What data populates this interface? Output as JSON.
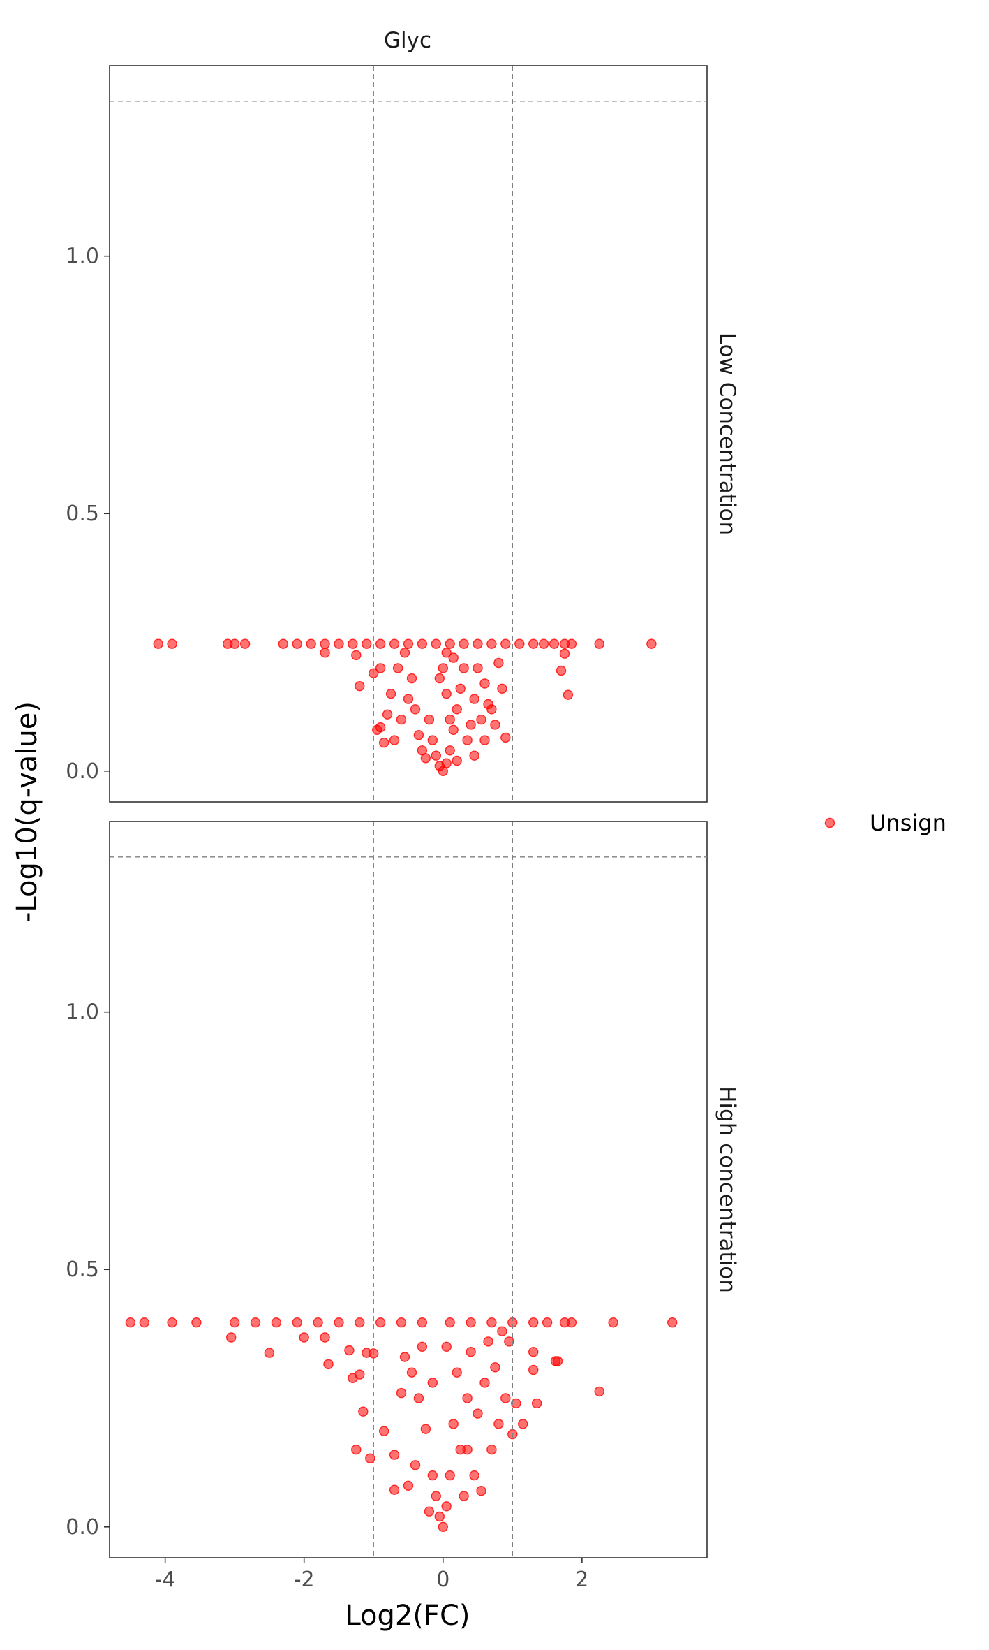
{
  "chart_data": {
    "type": "scatter",
    "facet_column": "Glyc",
    "facets": [
      {
        "label": "Low Concentration",
        "ylim": [
          -0.06,
          1.37
        ],
        "yticks": [
          0.0,
          0.5,
          1.0
        ],
        "ytick_labels": [
          "0.0",
          "0.5",
          "1.0"
        ]
      },
      {
        "label": "High concentration",
        "ylim": [
          -0.06,
          1.37
        ],
        "yticks": [
          0.0,
          0.5,
          1.0
        ],
        "ytick_labels": [
          "0.0",
          "0.5",
          "1.0"
        ]
      }
    ],
    "xlim": [
      -4.8,
      3.8
    ],
    "xticks": [
      -4,
      -2,
      0,
      2
    ],
    "xtick_labels": [
      "-4",
      "-2",
      "0",
      "2"
    ],
    "xlabel": "Log2(FC)",
    "ylabel": "-Log10(q-value)",
    "vlines": [
      -1,
      1
    ],
    "hline": 1.301,
    "legend": {
      "position": "right",
      "entries": [
        {
          "label": "Unsign",
          "color": "#ff0000"
        }
      ]
    },
    "grid": false,
    "series": [
      {
        "facet": "Low Concentration",
        "points": [
          [
            -4.1,
            0.247
          ],
          [
            -3.9,
            0.247
          ],
          [
            -3.1,
            0.247
          ],
          [
            -3.0,
            0.247
          ],
          [
            -2.85,
            0.247
          ],
          [
            -2.3,
            0.247
          ],
          [
            -2.1,
            0.247
          ],
          [
            -1.9,
            0.247
          ],
          [
            -1.7,
            0.247
          ],
          [
            -1.5,
            0.247
          ],
          [
            -1.3,
            0.247
          ],
          [
            -1.1,
            0.247
          ],
          [
            -0.9,
            0.247
          ],
          [
            -0.7,
            0.247
          ],
          [
            -0.5,
            0.247
          ],
          [
            -0.3,
            0.247
          ],
          [
            -0.1,
            0.247
          ],
          [
            0.1,
            0.247
          ],
          [
            0.3,
            0.247
          ],
          [
            0.5,
            0.247
          ],
          [
            0.7,
            0.247
          ],
          [
            0.9,
            0.247
          ],
          [
            1.1,
            0.247
          ],
          [
            1.3,
            0.247
          ],
          [
            1.45,
            0.247
          ],
          [
            1.6,
            0.247
          ],
          [
            1.75,
            0.247
          ],
          [
            1.85,
            0.247
          ],
          [
            2.25,
            0.247
          ],
          [
            3.0,
            0.247
          ],
          [
            -1.7,
            0.23
          ],
          [
            -1.25,
            0.225
          ],
          [
            -0.9,
            0.2
          ],
          [
            -1.2,
            0.165
          ],
          [
            -1.0,
            0.19
          ],
          [
            -0.75,
            0.15
          ],
          [
            -0.8,
            0.11
          ],
          [
            -0.9,
            0.085
          ],
          [
            -0.95,
            0.08
          ],
          [
            -0.85,
            0.055
          ],
          [
            -0.7,
            0.06
          ],
          [
            -0.6,
            0.1
          ],
          [
            -0.5,
            0.14
          ],
          [
            -0.45,
            0.18
          ],
          [
            -0.4,
            0.12
          ],
          [
            -0.35,
            0.07
          ],
          [
            -0.3,
            0.04
          ],
          [
            -0.25,
            0.025
          ],
          [
            -0.2,
            0.1
          ],
          [
            -0.15,
            0.06
          ],
          [
            -0.1,
            0.03
          ],
          [
            -0.05,
            0.01
          ],
          [
            0.0,
            0.0
          ],
          [
            0.05,
            0.015
          ],
          [
            0.1,
            0.04
          ],
          [
            0.15,
            0.08
          ],
          [
            0.2,
            0.12
          ],
          [
            0.25,
            0.16
          ],
          [
            0.3,
            0.2
          ],
          [
            0.35,
            0.06
          ],
          [
            0.4,
            0.09
          ],
          [
            0.45,
            0.14
          ],
          [
            0.5,
            0.2
          ],
          [
            0.55,
            0.1
          ],
          [
            0.6,
            0.17
          ],
          [
            0.65,
            0.13
          ],
          [
            0.7,
            0.12
          ],
          [
            0.75,
            0.09
          ],
          [
            0.8,
            0.21
          ],
          [
            0.85,
            0.16
          ],
          [
            0.9,
            0.065
          ],
          [
            0.6,
            0.06
          ],
          [
            0.45,
            0.03
          ],
          [
            0.2,
            0.02
          ],
          [
            0.1,
            0.1
          ],
          [
            0.05,
            0.15
          ],
          [
            0.0,
            0.2
          ],
          [
            0.05,
            0.23
          ],
          [
            0.15,
            0.22
          ],
          [
            -0.05,
            0.18
          ],
          [
            1.7,
            0.195
          ],
          [
            1.8,
            0.148
          ],
          [
            1.75,
            0.228
          ],
          [
            -0.55,
            0.23
          ],
          [
            -0.65,
            0.2
          ]
        ]
      },
      {
        "facet": "High concentration",
        "points": [
          [
            -4.5,
            0.397
          ],
          [
            -4.3,
            0.397
          ],
          [
            -3.9,
            0.397
          ],
          [
            -3.55,
            0.397
          ],
          [
            -3.0,
            0.397
          ],
          [
            -2.7,
            0.397
          ],
          [
            -2.4,
            0.397
          ],
          [
            -2.1,
            0.397
          ],
          [
            -1.8,
            0.397
          ],
          [
            -1.5,
            0.397
          ],
          [
            -1.2,
            0.397
          ],
          [
            -0.9,
            0.397
          ],
          [
            -0.6,
            0.397
          ],
          [
            -0.3,
            0.397
          ],
          [
            0.1,
            0.397
          ],
          [
            0.4,
            0.397
          ],
          [
            0.7,
            0.397
          ],
          [
            1.0,
            0.397
          ],
          [
            1.3,
            0.397
          ],
          [
            1.5,
            0.397
          ],
          [
            1.75,
            0.397
          ],
          [
            1.85,
            0.397
          ],
          [
            2.45,
            0.397
          ],
          [
            3.3,
            0.397
          ],
          [
            -3.05,
            0.368
          ],
          [
            -2.5,
            0.338
          ],
          [
            -2.0,
            0.368
          ],
          [
            -1.7,
            0.368
          ],
          [
            -1.65,
            0.316
          ],
          [
            -1.35,
            0.343
          ],
          [
            -1.3,
            0.289
          ],
          [
            -1.2,
            0.296
          ],
          [
            -1.1,
            0.338
          ],
          [
            -1.0,
            0.337
          ],
          [
            -1.15,
            0.224
          ],
          [
            -1.25,
            0.15
          ],
          [
            -1.05,
            0.133
          ],
          [
            -0.85,
            0.186
          ],
          [
            -0.7,
            0.14
          ],
          [
            -0.7,
            0.072
          ],
          [
            -0.5,
            0.08
          ],
          [
            -0.4,
            0.12
          ],
          [
            -0.35,
            0.25
          ],
          [
            -0.3,
            0.35
          ],
          [
            -0.25,
            0.19
          ],
          [
            -0.2,
            0.03
          ],
          [
            -0.15,
            0.1
          ],
          [
            -0.1,
            0.06
          ],
          [
            -0.05,
            0.02
          ],
          [
            0.0,
            0.0
          ],
          [
            0.05,
            0.04
          ],
          [
            0.1,
            0.1
          ],
          [
            0.15,
            0.2
          ],
          [
            0.2,
            0.3
          ],
          [
            0.25,
            0.15
          ],
          [
            0.3,
            0.06
          ],
          [
            0.35,
            0.25
          ],
          [
            0.4,
            0.34
          ],
          [
            0.45,
            0.1
          ],
          [
            0.5,
            0.22
          ],
          [
            0.55,
            0.07
          ],
          [
            0.6,
            0.28
          ],
          [
            0.65,
            0.36
          ],
          [
            0.7,
            0.15
          ],
          [
            0.75,
            0.31
          ],
          [
            0.8,
            0.2
          ],
          [
            0.85,
            0.38
          ],
          [
            0.9,
            0.25
          ],
          [
            0.95,
            0.36
          ],
          [
            1.05,
            0.24
          ],
          [
            1.0,
            0.18
          ],
          [
            1.15,
            0.2
          ],
          [
            1.3,
            0.34
          ],
          [
            1.35,
            0.24
          ],
          [
            1.3,
            0.305
          ],
          [
            1.62,
            0.322
          ],
          [
            1.65,
            0.322
          ],
          [
            2.25,
            0.263
          ],
          [
            0.35,
            0.15
          ],
          [
            -0.45,
            0.3
          ],
          [
            -0.6,
            0.26
          ],
          [
            -0.55,
            0.33
          ],
          [
            -0.15,
            0.28
          ],
          [
            0.05,
            0.35
          ]
        ]
      }
    ]
  }
}
